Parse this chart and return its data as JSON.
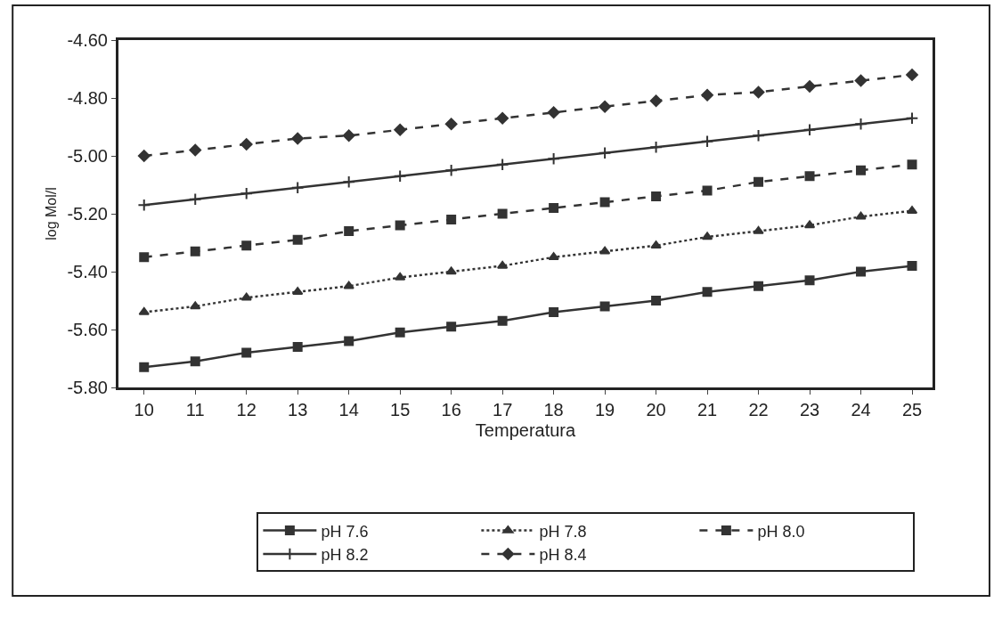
{
  "chart_data": {
    "type": "line",
    "xlabel": "Temperatura",
    "ylabel": "log Mol/l",
    "x": [
      10,
      11,
      12,
      13,
      14,
      15,
      16,
      17,
      18,
      19,
      20,
      21,
      22,
      23,
      24,
      25
    ],
    "xlim": [
      9.5,
      25.4
    ],
    "xticks": [
      10,
      11,
      12,
      13,
      14,
      15,
      16,
      17,
      18,
      19,
      20,
      21,
      22,
      23,
      24,
      25
    ],
    "ylim": [
      -5.8,
      -4.6
    ],
    "yticks": [
      {
        "value": -5.8,
        "label": "-5.80"
      },
      {
        "value": -5.6,
        "label": "-5.60"
      },
      {
        "value": -5.4,
        "label": "-5.40"
      },
      {
        "value": -5.2,
        "label": "-5.20"
      },
      {
        "value": -5.0,
        "label": "-5.00"
      },
      {
        "value": -4.8,
        "label": "-4.80"
      },
      {
        "value": -4.6,
        "label": "-4.60"
      }
    ],
    "legend": "bottom",
    "series": [
      {
        "name": "pH 7.6",
        "color": "#333333",
        "marker": "square",
        "line_style": "solid",
        "values": [
          -5.73,
          -5.71,
          -5.68,
          -5.66,
          -5.64,
          -5.61,
          -5.59,
          -5.57,
          -5.54,
          -5.52,
          -5.5,
          -5.47,
          -5.45,
          -5.43,
          -5.4,
          -5.38
        ]
      },
      {
        "name": "pH 7.8",
        "color": "#333333",
        "marker": "triangle",
        "line_style": "dotted",
        "values": [
          -5.54,
          -5.52,
          -5.49,
          -5.47,
          -5.45,
          -5.42,
          -5.4,
          -5.38,
          -5.35,
          -5.33,
          -5.31,
          -5.28,
          -5.26,
          -5.24,
          -5.21,
          -5.19
        ]
      },
      {
        "name": "pH 8.0",
        "color": "#333333",
        "marker": "square",
        "line_style": "dashed",
        "values": [
          -5.35,
          -5.33,
          -5.31,
          -5.29,
          -5.26,
          -5.24,
          -5.22,
          -5.2,
          -5.18,
          -5.16,
          -5.14,
          -5.12,
          -5.09,
          -5.07,
          -5.05,
          -5.03
        ]
      },
      {
        "name": "pH 8.2",
        "color": "#333333",
        "marker": "cross",
        "line_style": "solid",
        "values": [
          -5.17,
          -5.15,
          -5.13,
          -5.11,
          -5.09,
          -5.07,
          -5.05,
          -5.03,
          -5.01,
          -4.99,
          -4.97,
          -4.95,
          -4.93,
          -4.91,
          -4.89,
          -4.87
        ]
      },
      {
        "name": "pH 8.4",
        "color": "#333333",
        "marker": "diamond",
        "line_style": "dashed",
        "values": [
          -5.0,
          -4.98,
          -4.96,
          -4.94,
          -4.93,
          -4.91,
          -4.89,
          -4.87,
          -4.85,
          -4.83,
          -4.81,
          -4.79,
          -4.78,
          -4.76,
          -4.74,
          -4.72
        ]
      }
    ]
  }
}
